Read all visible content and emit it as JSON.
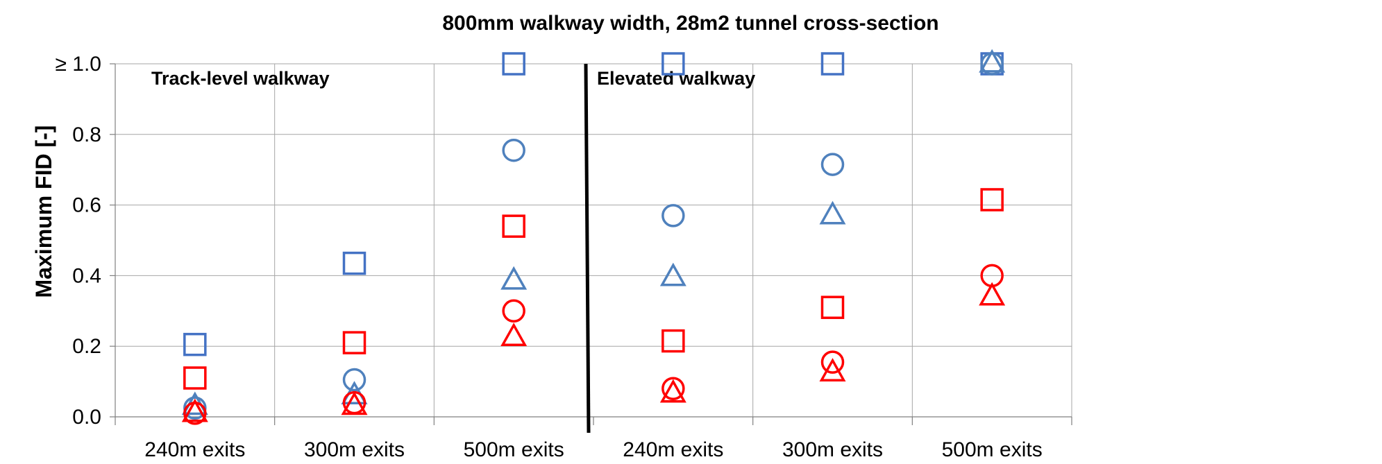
{
  "chart_data": {
    "type": "scatter",
    "title": "800mm walkway width, 28m2 tunnel cross-section",
    "ylabel": "Maximum FID [-]",
    "xlabel": "",
    "ylim": [
      0,
      1.0
    ],
    "y_ticks": [
      "0.0",
      "0.2",
      "0.4",
      "0.6",
      "0.8",
      "≥ 1.0"
    ],
    "categories": [
      "240m exits",
      "300m exits",
      "500m exits",
      "240m exits",
      "300m exits",
      "500m exits"
    ],
    "panels": [
      {
        "label": "Track-level walkway",
        "categories": [
          0,
          1,
          2
        ]
      },
      {
        "label": "Elevated walkway",
        "categories": [
          3,
          4,
          5
        ]
      }
    ],
    "grid": true,
    "series": [
      {
        "marker": "square",
        "color": "#4472c4",
        "values": [
          0.205,
          0.435,
          1.0,
          1.0,
          1.0,
          1.0
        ]
      },
      {
        "marker": "circle",
        "color": "#4f81bd",
        "values": [
          0.025,
          0.105,
          0.755,
          0.57,
          0.715,
          1.0
        ]
      },
      {
        "marker": "triangle",
        "color": "#4f81bd",
        "values": [
          0.03,
          0.06,
          0.385,
          0.395,
          0.57,
          1.0
        ]
      },
      {
        "marker": "square",
        "color": "#ff0000",
        "values": [
          0.11,
          0.21,
          0.54,
          0.215,
          0.31,
          0.615
        ]
      },
      {
        "marker": "circle",
        "color": "#ff0000",
        "values": [
          0.01,
          0.04,
          0.3,
          0.08,
          0.155,
          0.4
        ]
      },
      {
        "marker": "triangle",
        "color": "#ff0000",
        "values": [
          0.01,
          0.03,
          0.225,
          0.065,
          0.125,
          0.34
        ]
      }
    ]
  }
}
